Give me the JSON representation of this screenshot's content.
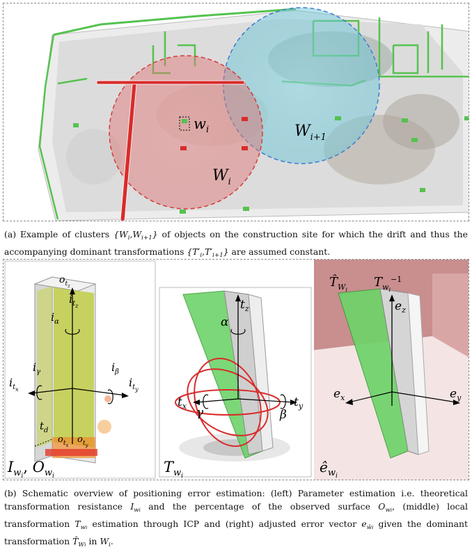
{
  "figure_a": {
    "labels": {
      "w_small": "w",
      "w_small_sub": "i",
      "W_i": "W",
      "W_i_sub": "i",
      "W_i1": "W",
      "W_i1_sub": "i+1"
    },
    "caption_prefix": "(a) Example of clusters",
    "caption_set1": "{W",
    "caption_set1_sub1": "i",
    "caption_set1_mid": ",W",
    "caption_set1_sub2": "i+1",
    "caption_set1_close": "}",
    "caption_mid": "of objects on the construction site for which the drift and thus the accompanying dominant transformations",
    "caption_set2": "{T′",
    "caption_set2_sub1": "i",
    "caption_set2_mid": ",T′",
    "caption_set2_sub2": "i+1",
    "caption_set2_close": "}",
    "caption_end": "are assumed constant."
  },
  "figure_b": {
    "left": {
      "o_tz": "o",
      "i_tz": "i",
      "i_alpha": "i",
      "i_gamma": "i",
      "i_beta": "i",
      "i_tx": "i",
      "i_ty": "i",
      "t_d": "t",
      "o_tx": "o",
      "o_ty": "o",
      "bottom": "I",
      "bottom2": "O"
    },
    "middle": {
      "t_z": "t",
      "alpha": "α",
      "t_x": "t",
      "t_y": "t",
      "gamma": "γ",
      "beta": "β",
      "bottom": "T"
    },
    "right": {
      "T_hat": "T̂",
      "T_inv": "T",
      "e_z": "e",
      "e_x": "e",
      "e_y": "e",
      "bottom": "ê"
    },
    "caption_1": "(b) Schematic overview of positioning error estimation: (left) Parameter estimation i.e. theoretical transformation resistance",
    "caption_2": "and the percentage of the observed surface",
    "caption_3": ", (middle) local transformation",
    "caption_4": "estimation through ICP and (right) adjusted error vector",
    "caption_5": "given the dominant transformation",
    "caption_6": "in",
    "caption_7": "."
  },
  "colors": {
    "green": "#55c24f",
    "red_zone": "#e58a8a",
    "blue_zone": "#7fd0dd",
    "red_line": "#d92b2b"
  }
}
